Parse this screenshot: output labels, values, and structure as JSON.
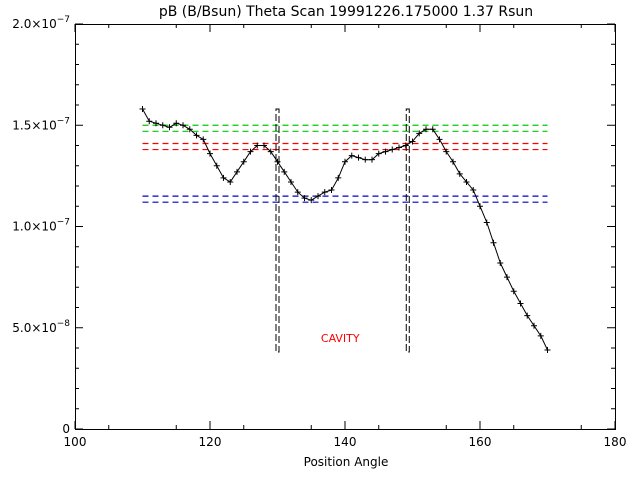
{
  "chart_data": {
    "type": "scatter",
    "title": "pB (B/Bsun) Theta Scan 19991226.175000 1.37 Rsun",
    "xlabel": "Position Angle",
    "ylabel": "",
    "xlim": [
      100,
      180
    ],
    "ylim": [
      0,
      2e-07
    ],
    "x_ticks": [
      100,
      120,
      140,
      160,
      180
    ],
    "x_tick_labels": [
      "100",
      "120",
      "140",
      "160",
      "180"
    ],
    "y_ticks": [
      0,
      5e-08,
      1e-07,
      1.5e-07,
      2e-07
    ],
    "y_tick_labels": [
      {
        "mantissa": "0",
        "exponent": ""
      },
      {
        "mantissa": "5.0×10",
        "exponent": "−8"
      },
      {
        "mantissa": "1.0×10",
        "exponent": "−7"
      },
      {
        "mantissa": "1.5×10",
        "exponent": "−7"
      },
      {
        "mantissa": "2.0×10",
        "exponent": "−7"
      }
    ],
    "grid": false,
    "series": [
      {
        "marker": "plus",
        "color": "#000000",
        "x": [
          110,
          111,
          112,
          113,
          114,
          115,
          116,
          117,
          118,
          119,
          120,
          121,
          122,
          123,
          124,
          125,
          126,
          127,
          128,
          129,
          130,
          131,
          132,
          133,
          134,
          135,
          136,
          137,
          138,
          139,
          140,
          141,
          142,
          143,
          144,
          145,
          146,
          147,
          148,
          149,
          150,
          151,
          152,
          153,
          154,
          155,
          156,
          157,
          158,
          159,
          160,
          161,
          162,
          163,
          164,
          165,
          166,
          167,
          168,
          169,
          170
        ],
        "y": [
          1.58e-07,
          1.52e-07,
          1.51e-07,
          1.5e-07,
          1.49e-07,
          1.51e-07,
          1.5e-07,
          1.48e-07,
          1.45e-07,
          1.43e-07,
          1.36e-07,
          1.3e-07,
          1.24e-07,
          1.22e-07,
          1.27e-07,
          1.32e-07,
          1.37e-07,
          1.4e-07,
          1.4e-07,
          1.37e-07,
          1.32e-07,
          1.27e-07,
          1.22e-07,
          1.17e-07,
          1.14e-07,
          1.13e-07,
          1.15e-07,
          1.17e-07,
          1.18e-07,
          1.24e-07,
          1.32e-07,
          1.35e-07,
          1.34e-07,
          1.33e-07,
          1.33e-07,
          1.36e-07,
          1.37e-07,
          1.38e-07,
          1.39e-07,
          1.4e-07,
          1.42e-07,
          1.46e-07,
          1.48e-07,
          1.48e-07,
          1.43e-07,
          1.37e-07,
          1.32e-07,
          1.26e-07,
          1.22e-07,
          1.18e-07,
          1.1e-07,
          1.02e-07,
          9.2e-08,
          8.2e-08,
          7.5e-08,
          6.8e-08,
          6.2e-08,
          5.6e-08,
          5.1e-08,
          4.6e-08,
          3.9e-08
        ]
      }
    ],
    "reference_lines": [
      {
        "color": "#00cc00",
        "y": 1.5e-07,
        "xmin": 110,
        "xmax": 170,
        "style": "dashed"
      },
      {
        "color": "#00cc00",
        "y": 1.47e-07,
        "xmin": 110,
        "xmax": 170,
        "style": "dashed"
      },
      {
        "color": "#ff0000",
        "y": 1.41e-07,
        "xmin": 110,
        "xmax": 170,
        "style": "dashed"
      },
      {
        "color": "#ff0000",
        "y": 1.38e-07,
        "xmin": 110,
        "xmax": 170,
        "style": "dashed"
      },
      {
        "color": "#0000cc",
        "y": 1.15e-07,
        "xmin": 110,
        "xmax": 170,
        "style": "dashed"
      },
      {
        "color": "#0000cc",
        "y": 1.12e-07,
        "xmin": 110,
        "xmax": 170,
        "style": "dashed"
      }
    ],
    "cavity_bounds": [
      {
        "x": 130,
        "ymin": 3.8e-08,
        "ymax": 1.58e-07
      },
      {
        "x": 149.3,
        "ymin": 3.8e-08,
        "ymax": 1.58e-07
      }
    ],
    "annotations": [
      {
        "text": "CAVITY",
        "x": 139.3,
        "y": 4.3e-08,
        "color": "#ff0000"
      }
    ]
  }
}
